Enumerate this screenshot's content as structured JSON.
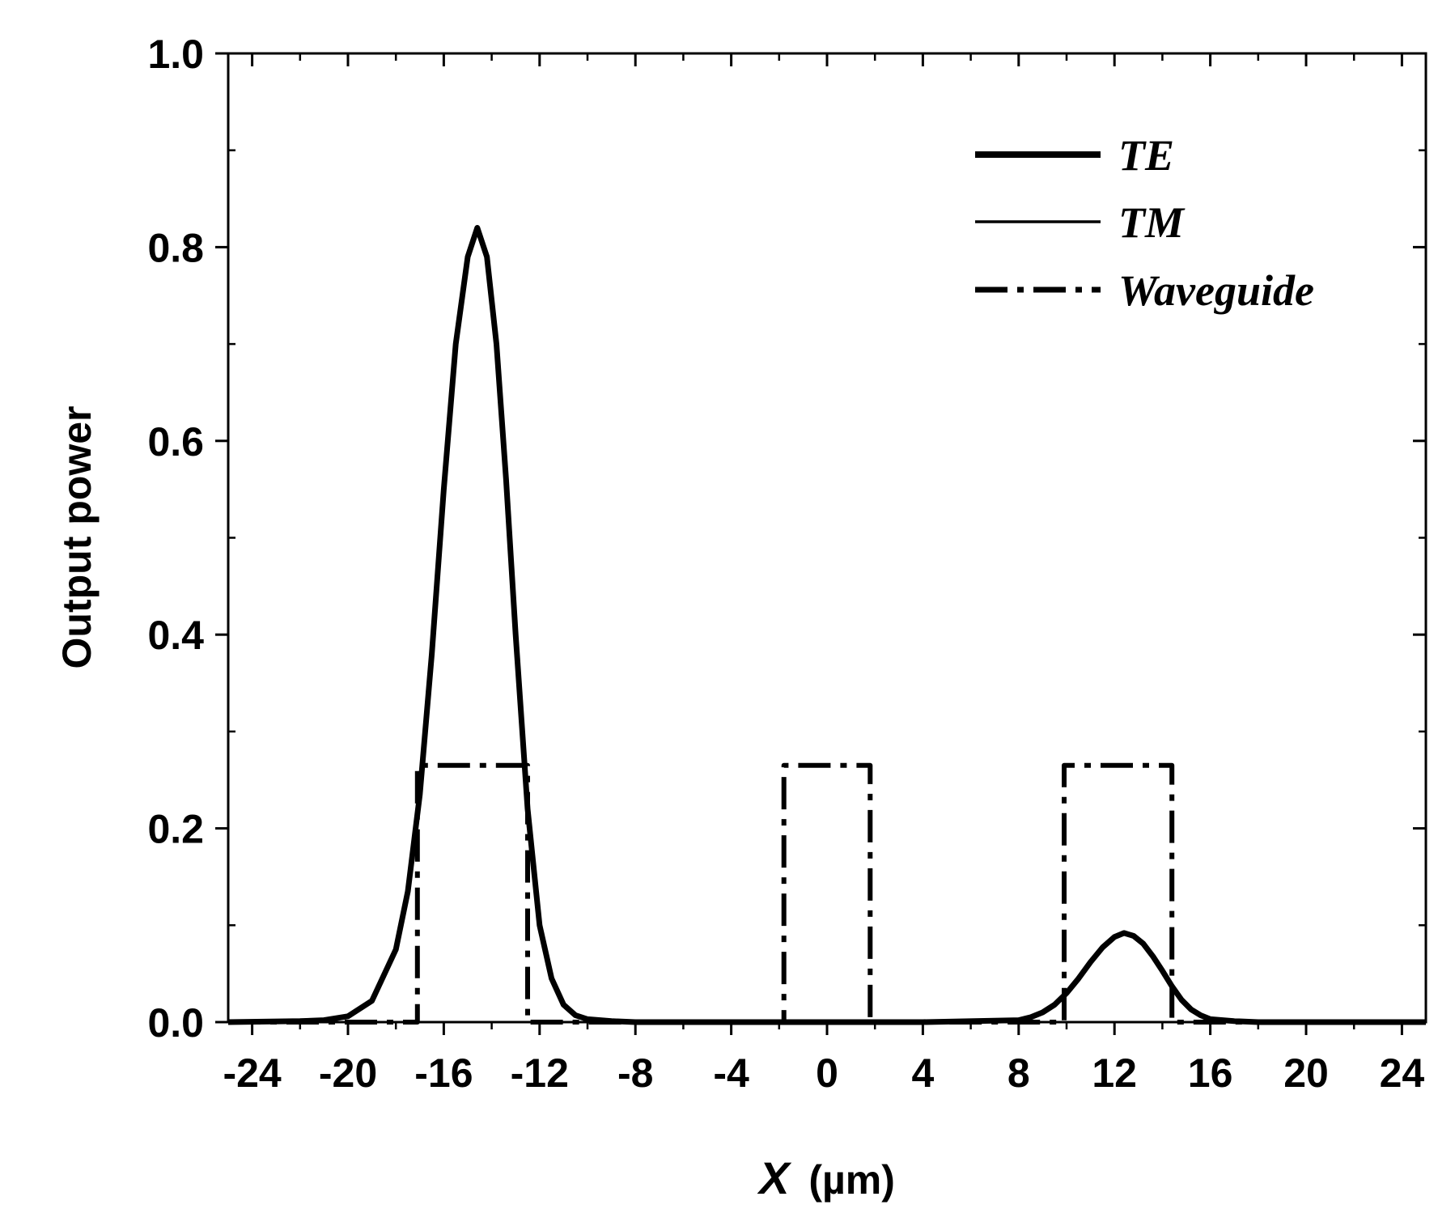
{
  "chart_data": {
    "type": "line",
    "xlabel_var": "X",
    "xlabel_unit": "(µm)",
    "ylabel": "Output power",
    "xlim": [
      -25,
      25
    ],
    "ylim": [
      0,
      1.0
    ],
    "xticks": [
      "-24",
      "-20",
      "-16",
      "-12",
      "-8",
      "-4",
      "0",
      "4",
      "8",
      "12",
      "16",
      "20",
      "24"
    ],
    "yticks": [
      "0.0",
      "0.2",
      "0.4",
      "0.6",
      "0.8",
      "1.0"
    ],
    "grid": false,
    "legend_position": "top-right",
    "series": [
      {
        "name": "TE",
        "style": "thick-solid",
        "x": [
          -25,
          -22,
          -21,
          -20,
          -19,
          -18,
          -17.5,
          -17,
          -16.5,
          -16,
          -15.5,
          -15,
          -14.6,
          -14.2,
          -13.8,
          -13.4,
          -13,
          -12.5,
          -12,
          -11.5,
          -11,
          -10.5,
          -10,
          -9,
          -8,
          -4,
          0,
          4,
          8,
          8.5,
          9,
          9.5,
          10,
          10.5,
          11,
          11.5,
          12,
          12.4,
          12.8,
          13.2,
          13.6,
          14,
          14.4,
          14.8,
          15.2,
          15.6,
          16,
          17,
          18,
          25
        ],
        "y": [
          0,
          0.001,
          0.002,
          0.006,
          0.022,
          0.075,
          0.135,
          0.235,
          0.38,
          0.55,
          0.7,
          0.79,
          0.82,
          0.79,
          0.7,
          0.56,
          0.4,
          0.22,
          0.1,
          0.045,
          0.018,
          0.007,
          0.003,
          0.001,
          0,
          0,
          0,
          0,
          0.002,
          0.005,
          0.01,
          0.018,
          0.03,
          0.045,
          0.062,
          0.077,
          0.088,
          0.092,
          0.089,
          0.081,
          0.068,
          0.053,
          0.037,
          0.023,
          0.013,
          0.007,
          0.003,
          0.001,
          0,
          0
        ]
      },
      {
        "name": "TM",
        "style": "thin-solid",
        "x": [
          -25,
          -22,
          -21,
          -20,
          -19,
          -18,
          -17.5,
          -17,
          -16.5,
          -16,
          -15.5,
          -15,
          -14.6,
          -14.2,
          -13.8,
          -13.4,
          -13,
          -12.5,
          -12,
          -11.5,
          -11,
          -10.5,
          -10,
          -9,
          -8,
          -4,
          0,
          4,
          8,
          8.5,
          9,
          9.5,
          10,
          10.5,
          11,
          11.5,
          12,
          12.4,
          12.8,
          13.2,
          13.6,
          14,
          14.4,
          14.8,
          15.2,
          15.6,
          16,
          17,
          18,
          25
        ],
        "y": [
          0,
          0.001,
          0.002,
          0.006,
          0.022,
          0.075,
          0.135,
          0.235,
          0.38,
          0.55,
          0.7,
          0.79,
          0.82,
          0.79,
          0.7,
          0.56,
          0.4,
          0.22,
          0.1,
          0.045,
          0.018,
          0.007,
          0.003,
          0.001,
          0,
          0,
          0,
          0,
          0.002,
          0.005,
          0.01,
          0.018,
          0.03,
          0.045,
          0.062,
          0.077,
          0.088,
          0.092,
          0.089,
          0.081,
          0.068,
          0.053,
          0.037,
          0.023,
          0.013,
          0.007,
          0.003,
          0.001,
          0,
          0
        ]
      },
      {
        "name": "Waveguide",
        "style": "dash-dot",
        "x": [
          -25,
          -17.1,
          -17.1,
          -12.5,
          -12.5,
          -1.8,
          -1.8,
          1.8,
          1.8,
          9.9,
          9.9,
          14.4,
          14.4,
          25
        ],
        "y": [
          0,
          0,
          0.265,
          0.265,
          0,
          0,
          0.265,
          0.265,
          0,
          0,
          0.265,
          0.265,
          0,
          0
        ]
      }
    ]
  }
}
